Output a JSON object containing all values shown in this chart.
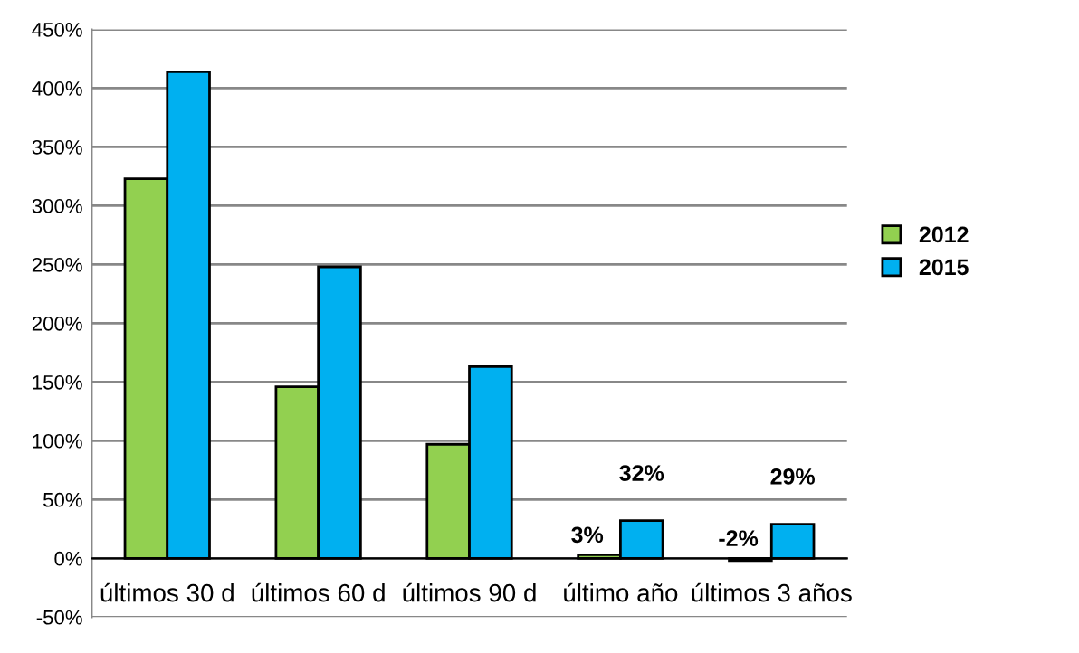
{
  "chart_data": {
    "type": "bar",
    "categories": [
      "últimos 30 d",
      "últimos 60 d",
      "últimos 90 d",
      "último año",
      "últimos 3 años"
    ],
    "series": [
      {
        "name": "2012",
        "color": "#92d050",
        "values": [
          323,
          146,
          97,
          3,
          -2
        ],
        "value_labels": [
          null,
          null,
          null,
          "3%",
          "-2%"
        ]
      },
      {
        "name": "2015",
        "color": "#00b0f0",
        "values": [
          414,
          248,
          163,
          32,
          29
        ],
        "value_labels": [
          null,
          null,
          null,
          "32%",
          "29%"
        ]
      }
    ],
    "ylim": [
      -50,
      450
    ],
    "yticks": [
      {
        "value": -50,
        "label": "-50%"
      },
      {
        "value": 0,
        "label": "0%"
      },
      {
        "value": 50,
        "label": "50%"
      },
      {
        "value": 100,
        "label": "100%"
      },
      {
        "value": 150,
        "label": "150%"
      },
      {
        "value": 200,
        "label": "200%"
      },
      {
        "value": 250,
        "label": "250%"
      },
      {
        "value": 300,
        "label": "300%"
      },
      {
        "value": 350,
        "label": "350%"
      },
      {
        "value": 400,
        "label": "400%"
      },
      {
        "value": 450,
        "label": "450%"
      }
    ],
    "grid": "y",
    "legend": "right"
  }
}
